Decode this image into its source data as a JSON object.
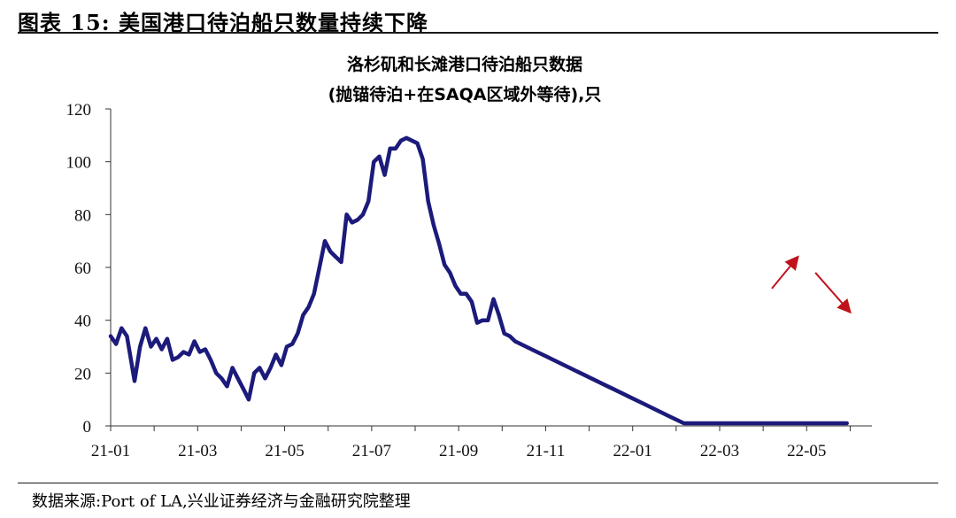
{
  "figure": {
    "title": "图表 15:  美国港口待泊船只数量持续下降",
    "source": "数据来源:Port of LA,兴业证券经济与金融研究院整理"
  },
  "chart_data": {
    "type": "line",
    "title": "洛杉矶和长滩港口待泊船只数据",
    "subtitle": "(抛锚待泊+在SAQA区域外等待),只",
    "xlabel": "",
    "ylabel": "",
    "ylim": [
      0,
      120
    ],
    "yticks": [
      "0",
      "20",
      "40",
      "60",
      "80",
      "100",
      "120"
    ],
    "xticks": [
      "21-01",
      "21-03",
      "21-05",
      "21-07",
      "21-09",
      "21-11",
      "22-01",
      "22-03",
      "22-05"
    ],
    "grid": false,
    "legend": "none",
    "colors": {
      "line": "#1c1a7a",
      "arrow": "#c0121b"
    },
    "series": [
      {
        "x": [
          0,
          0.25,
          0.5,
          0.75,
          1.1,
          1.35,
          1.6,
          1.85,
          2.1,
          2.35,
          2.6,
          2.85,
          3.1,
          3.35,
          3.6,
          3.85,
          4.1,
          4.35,
          4.6,
          4.85,
          5.1,
          5.35,
          5.6,
          5.85,
          6.1,
          6.35,
          6.6,
          6.85,
          7.1,
          7.35,
          7.6,
          7.85,
          8.1,
          8.35,
          8.6,
          8.85,
          9.1,
          9.35,
          9.6,
          9.85,
          10.1,
          10.35,
          10.6,
          10.85,
          11.1,
          11.35,
          11.6,
          11.85,
          12.1,
          12.35,
          12.6,
          12.85,
          13.1,
          13.35,
          13.6,
          13.85,
          14.1,
          14.35,
          14.6,
          14.85,
          15.1,
          15.35,
          15.6,
          15.85,
          16.1,
          16.35,
          16.6,
          16.85,
          17.1,
          17.35,
          17.6,
          17.85,
          18.1,
          18.35,
          18.6,
          18.85,
          19.1,
          19.35,
          19.6,
          19.85,
          20.1,
          20.35,
          20.6,
          20.85,
          21.1,
          21.35,
          21.6,
          21.85,
          22.1,
          22.35,
          22.6,
          22.85,
          23.1,
          23.35,
          23.6,
          23.85,
          24.1,
          24.35,
          24.6,
          24.85,
          25.1,
          25.35,
          25.6,
          25.85,
          26.1,
          26.35,
          26.6,
          26.85,
          27.1,
          27.35,
          27.6,
          27.85,
          28.1,
          28.35,
          28.6,
          28.85,
          29.1,
          29.35,
          29.6,
          29.85,
          30.1,
          30.35,
          30.6,
          30.85,
          31.1,
          31.35,
          31.6,
          31.85,
          32.1,
          32.35,
          32.6,
          32.85,
          33.1,
          33.35,
          33.6,
          33.85,
          34.1,
          34.35
        ],
        "values": [
          34,
          31,
          37,
          34,
          17,
          30,
          37,
          30,
          33,
          29,
          33,
          25,
          26,
          28,
          27,
          32,
          28,
          29,
          25,
          20,
          18,
          15,
          22,
          18,
          14,
          10,
          20,
          22,
          18,
          22,
          27,
          23,
          30,
          31,
          35,
          42,
          45,
          50,
          60,
          70,
          66,
          64,
          62,
          80,
          77,
          78,
          80,
          85,
          100,
          102,
          95,
          105,
          105,
          108,
          109,
          108,
          107,
          101,
          85,
          76,
          69,
          61,
          58,
          53,
          50,
          50,
          47,
          39,
          40,
          40,
          48,
          42,
          35,
          34,
          32,
          31,
          30,
          29,
          28,
          27,
          26,
          25,
          24,
          23,
          22,
          21,
          20,
          19,
          18,
          17,
          16,
          15,
          14,
          13,
          12,
          11,
          10,
          9,
          8,
          7,
          6,
          5,
          4,
          3,
          2,
          1,
          1,
          1,
          1,
          1,
          1,
          1,
          1,
          1,
          1,
          1,
          1,
          1,
          1,
          1,
          1,
          1,
          1,
          1,
          1,
          1,
          1,
          1,
          1,
          1,
          1,
          1,
          1,
          1,
          1,
          1,
          1,
          1
        ]
      }
    ]
  }
}
